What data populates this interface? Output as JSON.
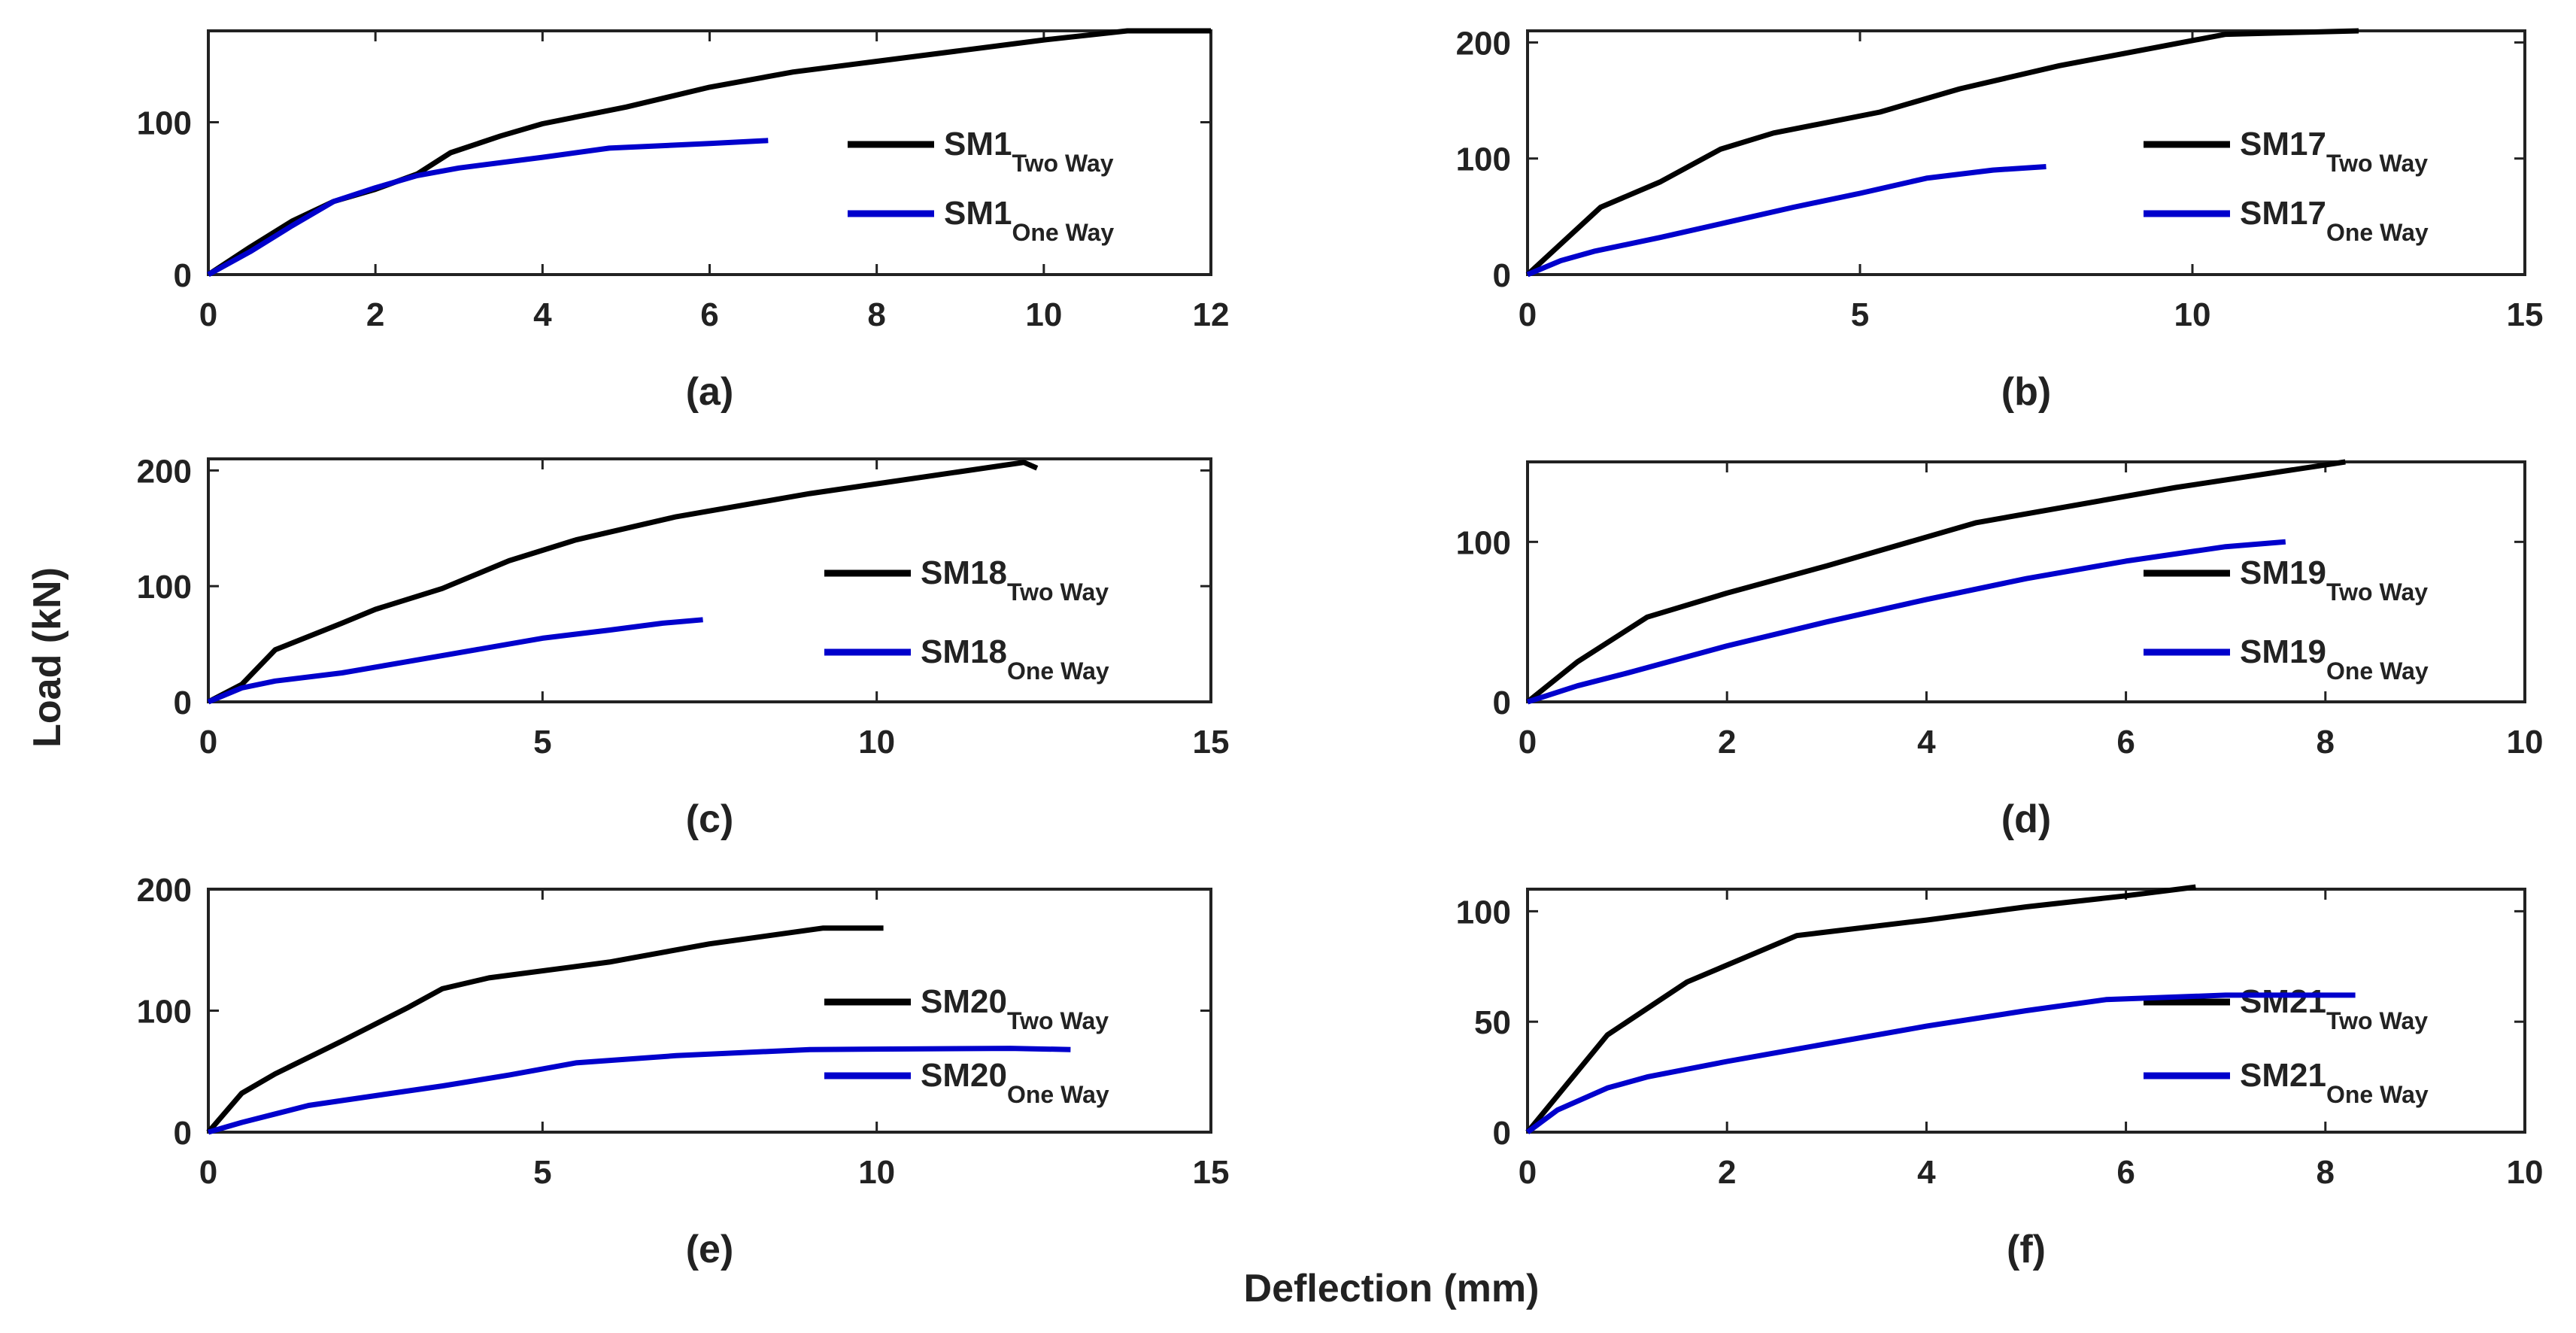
{
  "chart_data": {
    "type": "line",
    "ylabel": "Load (kN)",
    "xlabel": "Deflection (mm)",
    "colors": {
      "two_way": "#000000",
      "one_way": "#0000cc"
    },
    "panels": [
      {
        "label": "(a)",
        "xlim": [
          0,
          12
        ],
        "ylim": [
          0,
          160
        ],
        "xticks": [
          0,
          2,
          4,
          6,
          8,
          10,
          12
        ],
        "yticks": [
          0,
          100
        ],
        "series": [
          {
            "name": "SM1",
            "sub": "Two Way",
            "color": "#000000",
            "x": [
              0,
              0.5,
              1,
              1.5,
              2,
              2.5,
              2.9,
              3.5,
              4,
              5,
              6,
              7,
              8,
              9,
              10,
              11,
              12
            ],
            "y": [
              0,
              18,
              35,
              48,
              56,
              66,
              80,
              91,
              99,
              110,
              123,
              133,
              140,
              147,
              154,
              160,
              160
            ]
          },
          {
            "name": "SM1",
            "sub": "One Way",
            "color": "#0000cc",
            "x": [
              0,
              0.5,
              1,
              1.5,
              2,
              2.5,
              3,
              4,
              4.8,
              6,
              6.7
            ],
            "y": [
              0,
              15,
              32,
              48,
              57,
              65,
              70,
              77,
              83,
              86,
              88
            ]
          }
        ]
      },
      {
        "label": "(b)",
        "xlim": [
          0,
          15
        ],
        "ylim": [
          0,
          210
        ],
        "xticks": [
          0,
          5,
          10,
          15
        ],
        "yticks": [
          0,
          100,
          200
        ],
        "series": [
          {
            "name": "SM17",
            "sub": "Two Way",
            "color": "#000000",
            "x": [
              0,
              1.1,
              2,
              2.9,
              3.7,
              5.3,
              6.5,
              8,
              10.5,
              12.5
            ],
            "y": [
              0,
              58,
              80,
              108,
              122,
              140,
              160,
              180,
              207,
              210
            ]
          },
          {
            "name": "SM17",
            "sub": "One Way",
            "color": "#0000cc",
            "x": [
              0,
              0.5,
              1,
              2,
              3,
              4,
              5,
              6,
              7,
              7.8
            ],
            "y": [
              0,
              12,
              20,
              32,
              45,
              58,
              70,
              83,
              90,
              93
            ]
          }
        ]
      },
      {
        "label": "(c)",
        "xlim": [
          0,
          15
        ],
        "ylim": [
          0,
          210
        ],
        "xticks": [
          0,
          5,
          10,
          15
        ],
        "yticks": [
          0,
          100,
          200
        ],
        "series": [
          {
            "name": "SM18",
            "sub": "Two Way",
            "color": "#000000",
            "x": [
              0,
              0.5,
              1,
              2,
              2.5,
              3.5,
              4.5,
              5.5,
              7,
              9,
              12.2,
              12.4
            ],
            "y": [
              0,
              15,
              45,
              68,
              80,
              98,
              122,
              140,
              160,
              180,
              207,
              202
            ]
          },
          {
            "name": "SM18",
            "sub": "One Way",
            "color": "#0000cc",
            "x": [
              0,
              0.5,
              1,
              2,
              3,
              4,
              5,
              6,
              6.8,
              7.4
            ],
            "y": [
              0,
              12,
              18,
              25,
              35,
              45,
              55,
              62,
              68,
              71
            ]
          }
        ]
      },
      {
        "label": "(d)",
        "xlim": [
          0,
          10
        ],
        "ylim": [
          0,
          150
        ],
        "xticks": [
          0,
          2,
          4,
          6,
          8,
          10
        ],
        "yticks": [
          0,
          100
        ],
        "series": [
          {
            "name": "SM19",
            "sub": "Two Way",
            "color": "#000000",
            "x": [
              0,
              0.5,
              1.2,
              2,
              3,
              4.5,
              6.5,
              8.2
            ],
            "y": [
              0,
              25,
              53,
              68,
              85,
              112,
              134,
              150
            ]
          },
          {
            "name": "SM19",
            "sub": "One Way",
            "color": "#0000cc",
            "x": [
              0,
              0.5,
              1,
              2,
              3,
              4,
              5,
              6,
              7,
              7.6
            ],
            "y": [
              0,
              10,
              18,
              35,
              50,
              64,
              77,
              88,
              97,
              100
            ]
          }
        ]
      },
      {
        "label": "(e)",
        "xlim": [
          0,
          15
        ],
        "ylim": [
          0,
          200
        ],
        "xticks": [
          0,
          5,
          10,
          15
        ],
        "yticks": [
          0,
          100,
          200
        ],
        "series": [
          {
            "name": "SM20",
            "sub": "Two Way",
            "color": "#000000",
            "x": [
              0,
              0.5,
              1,
              2,
              3,
              3.5,
              4.2,
              6,
              7.5,
              9.2,
              10.1
            ],
            "y": [
              0,
              32,
              48,
              75,
              103,
              118,
              127,
              140,
              155,
              168,
              168
            ]
          },
          {
            "name": "SM20",
            "sub": "One Way",
            "color": "#0000cc",
            "x": [
              0,
              0.5,
              1,
              1.5,
              2.5,
              3.5,
              4.5,
              5.5,
              7,
              9,
              12,
              12.9
            ],
            "y": [
              0,
              8,
              15,
              22,
              30,
              38,
              47,
              57,
              63,
              68,
              69,
              68
            ]
          }
        ]
      },
      {
        "label": "(f)",
        "xlim": [
          0,
          10
        ],
        "ylim": [
          0,
          110
        ],
        "xticks": [
          0,
          2,
          4,
          6,
          8,
          10
        ],
        "yticks": [
          0,
          50,
          100
        ],
        "series": [
          {
            "name": "SM21",
            "sub": "Two Way",
            "color": "#000000",
            "x": [
              0,
              0.8,
              1.6,
              2.7,
              4,
              5,
              6,
              6.7
            ],
            "y": [
              0,
              44,
              68,
              89,
              96,
              102,
              107,
              111
            ]
          },
          {
            "name": "SM21",
            "sub": "One Way",
            "color": "#0000cc",
            "x": [
              0,
              0.3,
              0.8,
              1.2,
              2,
              3,
              4,
              5,
              5.8,
              7,
              8.3
            ],
            "y": [
              0,
              10,
              20,
              25,
              32,
              40,
              48,
              55,
              60,
              62,
              62
            ]
          }
        ]
      }
    ]
  }
}
